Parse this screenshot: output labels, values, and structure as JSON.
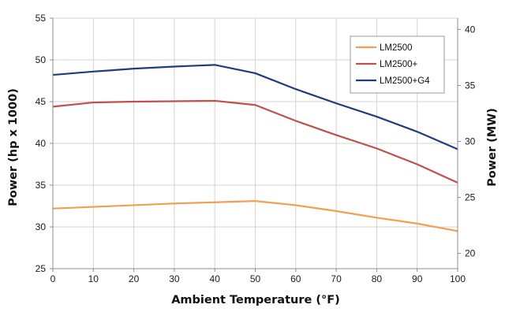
{
  "chart_data": {
    "type": "line",
    "title": "",
    "xlabel": "Ambient Temperature (°F)",
    "ylabel": "Power (hp x 1000)",
    "y2label": "Power (MW)",
    "xlim": [
      0,
      100
    ],
    "ylim": [
      25,
      55
    ],
    "y2lim": [
      18.64,
      41.01
    ],
    "x_ticks": [
      0,
      10,
      20,
      30,
      40,
      50,
      60,
      70,
      80,
      90,
      100
    ],
    "y_ticks": [
      25,
      30,
      35,
      40,
      45,
      50,
      55
    ],
    "y2_ticks": [
      20,
      25,
      30,
      35,
      40
    ],
    "grid": true,
    "legend_position": "top-right",
    "x": [
      0,
      10,
      20,
      30,
      40,
      50,
      60,
      70,
      80,
      90,
      100
    ],
    "series": [
      {
        "name": "LM2500",
        "color": "#f0a050",
        "values": [
          32.2,
          32.4,
          32.6,
          32.8,
          32.95,
          33.1,
          32.6,
          31.9,
          31.1,
          30.4,
          29.5
        ]
      },
      {
        "name": "LM2500+",
        "color": "#c0504d",
        "values": [
          44.4,
          44.9,
          45.0,
          45.05,
          45.1,
          44.6,
          42.7,
          41.0,
          39.4,
          37.5,
          35.3
        ]
      },
      {
        "name": "LM2500+G4",
        "color": "#1f3d7a",
        "values": [
          48.2,
          48.6,
          48.95,
          49.2,
          49.4,
          48.4,
          46.5,
          44.8,
          43.2,
          41.4,
          39.3
        ]
      }
    ]
  }
}
